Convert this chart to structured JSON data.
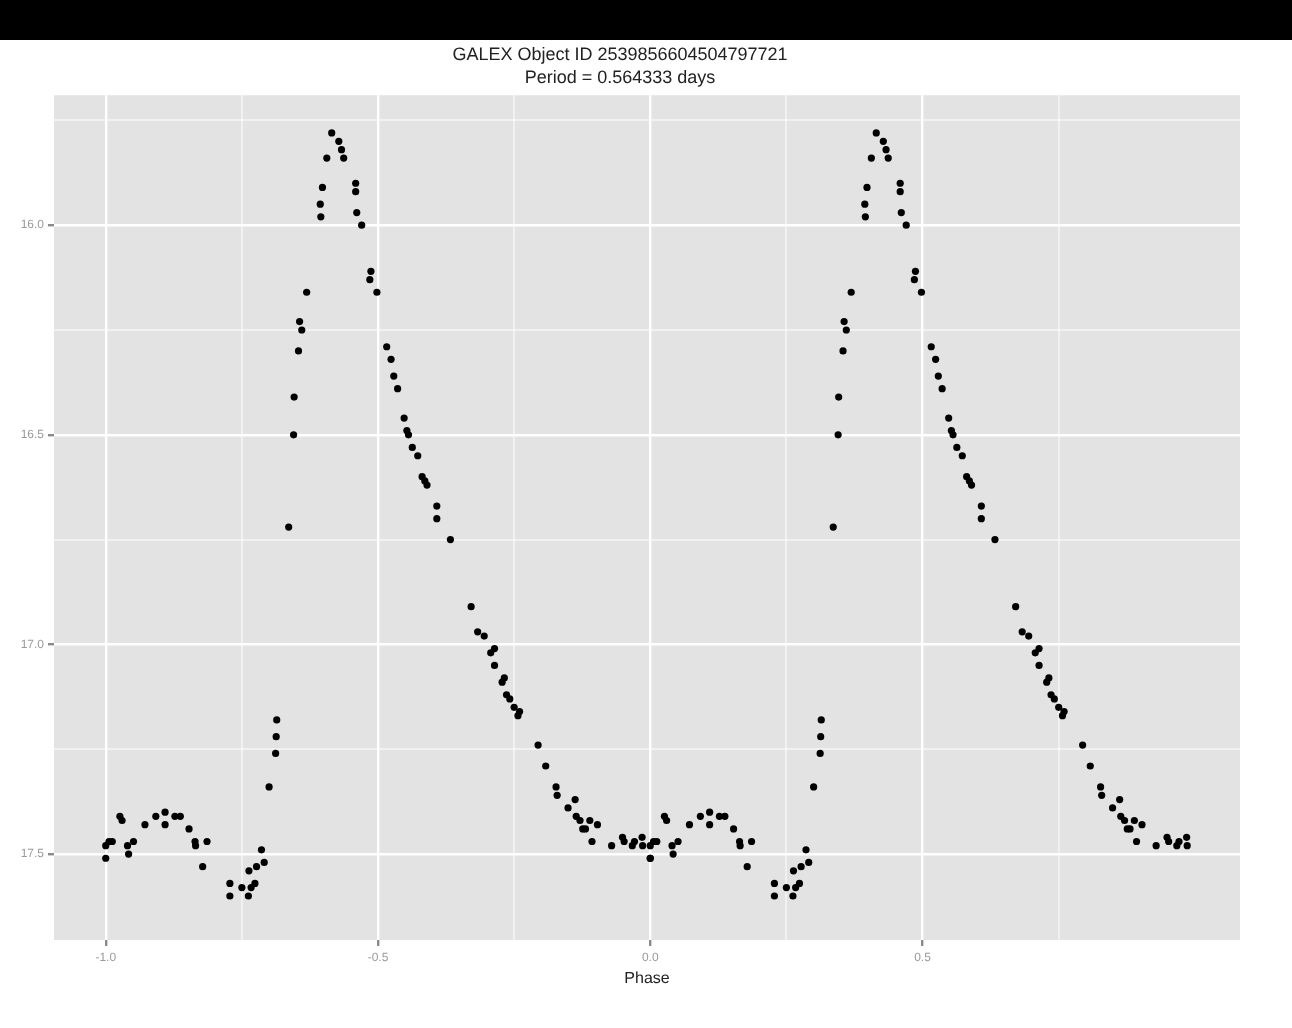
{
  "chart_data": {
    "type": "scatter",
    "title": "GALEX Object ID 2539856604504797721",
    "subtitle": "Period = 0.564333 days",
    "xlabel": "Phase",
    "xlim": [
      -1.095,
      1.083
    ],
    "xticks": [
      {
        "value": -1,
        "label": "-1.0"
      },
      {
        "value": -0.75,
        "label": null
      },
      -0.5,
      {
        "value": -0.25,
        "label": null
      },
      {
        "value": 0,
        "label": "0.0"
      },
      {
        "value": 0.25,
        "label": null
      },
      0.5,
      {
        "value": 0.75,
        "label": null
      }
    ],
    "ylim": [
      17.705,
      15.69
    ],
    "yticks": [
      {
        "value": 15.75,
        "label": null
      },
      {
        "value": 16,
        "label": "16.0"
      },
      {
        "value": 16.25,
        "label": null
      },
      16.5,
      {
        "value": 16.75,
        "label": null
      },
      {
        "value": 17,
        "label": "17.0"
      },
      {
        "value": 17.25,
        "label": null
      },
      17.5
    ],
    "grid": true,
    "marker": "circle",
    "legend": false,
    "series": [
      {
        "color": "#000000",
        "x": [
          -0.585,
          -0.572,
          -0.567,
          -0.563,
          -0.594,
          -0.602,
          -0.606,
          -0.605,
          -0.541,
          -0.541,
          -0.539,
          -0.53,
          -0.513,
          -0.515,
          -0.502,
          -0.631,
          -0.644,
          -0.64,
          -0.646,
          -0.654,
          -0.655,
          -0.664,
          -0.484,
          -0.476,
          -0.471,
          -0.464,
          -0.452,
          -0.447,
          -0.444,
          -0.437,
          -0.427,
          -0.419,
          -0.414,
          -0.41,
          -0.392,
          -0.392,
          -0.367,
          -0.329,
          -0.317,
          -0.305,
          -0.293,
          -0.286,
          -0.286,
          -0.272,
          -0.268,
          -0.264,
          -0.258,
          -0.25,
          -0.243,
          -0.24,
          -0.206,
          -0.192,
          -0.173,
          -0.171,
          -0.151,
          -0.138,
          -0.136,
          -0.129,
          -0.124,
          -0.119,
          -0.111,
          -0.107,
          -0.097,
          -0.071,
          -0.051,
          -0.048,
          -0.033,
          -0.029,
          -0.015,
          -0.014,
          0.0,
          -1.0,
          -1.0,
          -0.994,
          -0.988,
          -0.974,
          -0.97,
          -0.96,
          -0.958,
          -0.949,
          -0.928,
          -0.908,
          -0.891,
          -0.891,
          -0.873,
          -0.863,
          -0.847,
          -0.836,
          -0.835,
          -0.822,
          -0.814,
          -0.772,
          -0.772,
          -0.75,
          -0.738,
          -0.737,
          -0.733,
          -0.726,
          -0.723,
          -0.714,
          -0.709,
          -0.7,
          -0.688,
          -0.687,
          -0.686,
          0.415,
          0.428,
          0.433,
          0.437,
          0.406,
          0.398,
          0.394,
          0.395,
          0.459,
          0.459,
          0.461,
          0.47,
          0.487,
          0.485,
          0.498,
          0.369,
          0.356,
          0.36,
          0.354,
          0.346,
          0.345,
          0.336,
          0.516,
          0.524,
          0.529,
          0.536,
          0.548,
          0.553,
          0.556,
          0.563,
          0.573,
          0.581,
          0.586,
          0.59,
          0.608,
          0.608,
          0.633,
          0.671,
          0.683,
          0.695,
          0.707,
          0.714,
          0.714,
          0.728,
          0.732,
          0.736,
          0.742,
          0.75,
          0.757,
          0.76,
          0.794,
          0.808,
          0.827,
          0.829,
          0.849,
          0.862,
          0.864,
          0.871,
          0.876,
          0.881,
          0.889,
          0.893,
          0.903,
          0.929,
          0.949,
          0.952,
          0.967,
          0.971,
          0.985,
          0.986,
          0.0,
          0.0,
          0.006,
          0.012,
          0.026,
          0.03,
          0.04,
          0.042,
          0.051,
          0.072,
          0.092,
          0.109,
          0.109,
          0.127,
          0.137,
          0.153,
          0.164,
          0.165,
          0.178,
          0.186,
          0.228,
          0.228,
          0.25,
          0.262,
          0.263,
          0.267,
          0.274,
          0.277,
          0.286,
          0.291,
          0.3,
          0.312,
          0.313,
          0.314
        ],
        "values": [
          15.78,
          15.8,
          15.82,
          15.84,
          15.84,
          15.91,
          15.95,
          15.98,
          15.9,
          15.92,
          15.97,
          16.0,
          16.11,
          16.13,
          16.16,
          16.16,
          16.23,
          16.25,
          16.3,
          16.41,
          16.5,
          16.72,
          16.29,
          16.32,
          16.36,
          16.39,
          16.46,
          16.49,
          16.5,
          16.53,
          16.55,
          16.6,
          16.61,
          16.62,
          16.67,
          16.7,
          16.75,
          16.91,
          16.97,
          16.98,
          17.02,
          17.01,
          17.05,
          17.09,
          17.08,
          17.12,
          17.13,
          17.15,
          17.17,
          17.16,
          17.24,
          17.29,
          17.34,
          17.36,
          17.39,
          17.37,
          17.41,
          17.42,
          17.44,
          17.44,
          17.42,
          17.47,
          17.43,
          17.48,
          17.46,
          17.47,
          17.48,
          17.47,
          17.46,
          17.48,
          17.51,
          17.51,
          17.48,
          17.47,
          17.47,
          17.41,
          17.42,
          17.48,
          17.5,
          17.47,
          17.43,
          17.41,
          17.4,
          17.43,
          17.41,
          17.41,
          17.44,
          17.47,
          17.48,
          17.53,
          17.47,
          17.57,
          17.6,
          17.58,
          17.6,
          17.54,
          17.58,
          17.57,
          17.53,
          17.49,
          17.52,
          17.34,
          17.26,
          17.22,
          17.18,
          15.78,
          15.8,
          15.82,
          15.84,
          15.84,
          15.91,
          15.95,
          15.98,
          15.9,
          15.92,
          15.97,
          16.0,
          16.11,
          16.13,
          16.16,
          16.16,
          16.23,
          16.25,
          16.3,
          16.41,
          16.5,
          16.72,
          16.29,
          16.32,
          16.36,
          16.39,
          16.46,
          16.49,
          16.5,
          16.53,
          16.55,
          16.6,
          16.61,
          16.62,
          16.67,
          16.7,
          16.75,
          16.91,
          16.97,
          16.98,
          17.02,
          17.01,
          17.05,
          17.09,
          17.08,
          17.12,
          17.13,
          17.15,
          17.17,
          17.16,
          17.24,
          17.29,
          17.34,
          17.36,
          17.39,
          17.37,
          17.41,
          17.42,
          17.44,
          17.44,
          17.42,
          17.47,
          17.43,
          17.48,
          17.46,
          17.47,
          17.48,
          17.47,
          17.46,
          17.48,
          17.51,
          17.48,
          17.47,
          17.47,
          17.41,
          17.42,
          17.48,
          17.5,
          17.47,
          17.43,
          17.41,
          17.4,
          17.43,
          17.41,
          17.41,
          17.44,
          17.47,
          17.48,
          17.53,
          17.47,
          17.57,
          17.6,
          17.58,
          17.6,
          17.54,
          17.58,
          17.57,
          17.53,
          17.49,
          17.52,
          17.34,
          17.26,
          17.22,
          17.18
        ]
      }
    ]
  }
}
